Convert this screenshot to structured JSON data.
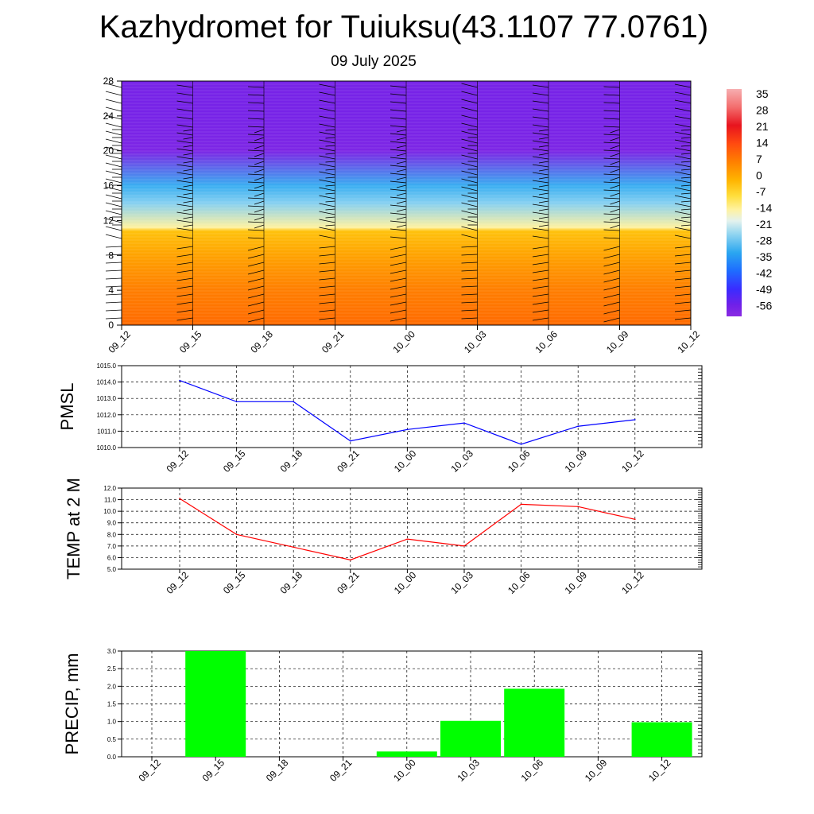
{
  "header": {
    "title": "Kazhydromet for Tuiuksu(43.1107 77.0761)",
    "date": "09 July 2025"
  },
  "time_labels": [
    "09_12",
    "09_15",
    "09_18",
    "09_21",
    "10_00",
    "10_03",
    "10_06",
    "10_09",
    "10_12"
  ],
  "colorbar": {
    "labels": [
      "35",
      "28",
      "21",
      "14",
      "7",
      "0",
      "-7",
      "-14",
      "-21",
      "-28",
      "-35",
      "-42",
      "-49",
      "-56"
    ]
  },
  "chart_data": [
    {
      "type": "heatmap",
      "title": "Kazhydromet for Tuiuksu(43.1107 77.0761)",
      "subtitle": "09 July 2025",
      "x": [
        "09_12",
        "09_15",
        "09_18",
        "09_21",
        "10_00",
        "10_03",
        "10_06",
        "10_09",
        "10_12"
      ],
      "yticks": [
        0,
        4,
        8,
        12,
        16,
        20,
        24,
        28
      ],
      "ylim": [
        0,
        28
      ],
      "colorbar_range": [
        -60,
        38
      ],
      "temperature_profile": {
        "height": [
          0,
          4,
          8,
          10.8,
          11.2,
          14,
          16,
          20,
          24,
          28
        ],
        "value": [
          13,
          10,
          4,
          -1,
          -11,
          -25,
          -33,
          -58,
          -57,
          -57
        ]
      },
      "wind_barbs": true
    },
    {
      "type": "line",
      "ylabel": "PMSL",
      "categories": [
        "09_12",
        "09_15",
        "09_18",
        "09_21",
        "10_00",
        "10_03",
        "10_06",
        "10_09",
        "10_12"
      ],
      "values": [
        1014.1,
        1012.8,
        1012.8,
        1010.4,
        1011.1,
        1011.5,
        1010.2,
        1011.3,
        1011.7
      ],
      "yticks": [
        "1010.0",
        "1011.0",
        "1012.0",
        "1013.0",
        "1014.0",
        "1015.0"
      ],
      "ylim": [
        1010,
        1015
      ],
      "color": "#0000ff",
      "grid": true
    },
    {
      "type": "line",
      "ylabel": "TEMP at 2 M",
      "categories": [
        "09_12",
        "09_15",
        "09_18",
        "09_21",
        "10_00",
        "10_03",
        "10_06",
        "10_09",
        "10_12"
      ],
      "values": [
        11.1,
        8.0,
        6.9,
        5.8,
        7.6,
        7.0,
        10.6,
        10.4,
        9.3
      ],
      "yticks": [
        "5.0",
        "6.0",
        "7.0",
        "8.0",
        "9.0",
        "10.0",
        "11.0",
        "12.0"
      ],
      "ylim": [
        5,
        12
      ],
      "color": "#ff0000",
      "grid": true
    },
    {
      "type": "bar",
      "ylabel": "PRECIP, mm",
      "categories": [
        "09_12",
        "09_15",
        "09_18",
        "09_21",
        "10_00",
        "10_03",
        "10_06",
        "10_09",
        "10_12"
      ],
      "values": [
        0,
        3.0,
        0,
        0,
        0.15,
        1.02,
        1.93,
        0,
        0.98
      ],
      "yticks": [
        "0.0",
        "0.5",
        "1.0",
        "1.5",
        "2.0",
        "2.5",
        "3.0"
      ],
      "ylim": [
        0,
        3
      ],
      "color": "#00ff00",
      "grid": true
    }
  ]
}
